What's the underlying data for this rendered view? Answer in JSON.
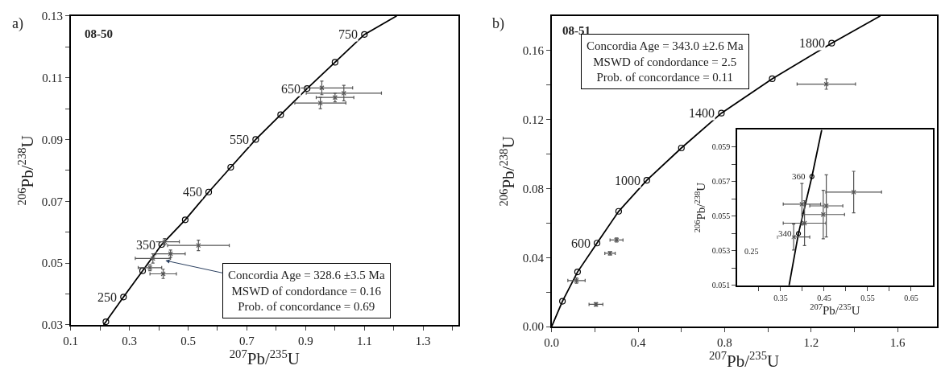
{
  "chart_data": [
    {
      "type": "scatter",
      "xlabel": "$^{207}$Pb/$^{235}$U",
      "ylabel": "$^{206}$Pb/$^{238}$U",
      "xlim": [
        0.1,
        1.42
      ],
      "ylim": [
        0.03,
        0.13
      ],
      "xticks": [
        0.1,
        {
          "value": 0.2,
          "label": null
        },
        0.3,
        {
          "value": 0.4,
          "label": null
        },
        0.5,
        {
          "value": 0.6,
          "label": null
        },
        0.7,
        {
          "value": 0.8,
          "label": null
        },
        0.9,
        {
          "value": 1.0,
          "label": null
        },
        1.1,
        {
          "value": 1.2,
          "label": null
        },
        1.3,
        {
          "value": 1.4,
          "label": null
        }
      ],
      "yticks": [
        0.03,
        {
          "value": 0.04,
          "label": null
        },
        0.05,
        {
          "value": 0.06,
          "label": null
        },
        0.07,
        {
          "value": 0.08,
          "label": null
        },
        0.09,
        {
          "value": 0.1,
          "label": null
        },
        0.11,
        {
          "value": 0.12,
          "label": null
        },
        0.13
      ],
      "series": [
        {
          "type": "line",
          "color": "#000000",
          "marker": "none",
          "line_style": "solid",
          "x": [
            0.212,
            0.22,
            0.28,
            0.345,
            0.41,
            0.49,
            0.57,
            0.645,
            0.73,
            0.815,
            0.905,
            1.0,
            1.1,
            1.21
          ],
          "values": [
            0.03,
            0.031,
            0.039,
            0.0475,
            0.056,
            0.064,
            0.073,
            0.081,
            0.09,
            0.098,
            0.1065,
            0.115,
            0.124,
            0.13
          ]
        },
        {
          "color": "#000000",
          "marker": "circle",
          "x": [
            0.22,
            0.28,
            0.345,
            0.41,
            0.49,
            0.57,
            0.645,
            0.73,
            0.815,
            0.905,
            1.0,
            1.1
          ],
          "values": [
            0.031,
            0.039,
            0.0475,
            0.056,
            0.064,
            0.073,
            0.081,
            0.09,
            0.098,
            0.1065,
            0.115,
            0.124
          ]
        },
        {
          "color": "#555555",
          "marker": "cross",
          "x": [
            0.42,
            0.535,
            0.38,
            0.44,
            0.37,
            0.415,
            0.955,
            1.03,
            1.0,
            0.95
          ],
          "values": [
            0.0569,
            0.0557,
            0.0515,
            0.053,
            0.0485,
            0.0465,
            0.1067,
            0.105,
            0.1036,
            0.1018
          ],
          "xerrors": [
            0.05,
            0.105,
            0.06,
            0.05,
            0.04,
            0.045,
            0.105,
            0.128,
            0.064,
            0.087
          ],
          "errors": [
            0.001,
            0.0017,
            0.0015,
            0.0012,
            0.001,
            0.0015,
            0.0022,
            0.0025,
            0.0014,
            0.0018
          ]
        }
      ],
      "annotations": [
        "a)",
        "08-50",
        {
          "text": "250",
          "x": 0.28,
          "y": 0.039
        },
        {
          "text": "350",
          "x": 0.41,
          "y": 0.056
        },
        {
          "text": "450",
          "x": 0.57,
          "y": 0.073
        },
        {
          "text": "550",
          "x": 0.73,
          "y": 0.09
        },
        {
          "text": "650",
          "x": 0.905,
          "y": 0.1065
        },
        {
          "text": "750",
          "x": 1.1,
          "y": 0.124
        },
        {
          "text": "Concordia Age = 328.6 ±3.5 Ma\nMSWD of condordance = 0.16\nProb. of concordance = 0.69",
          "x": 0.423,
          "y": 0.0508
        }
      ]
    },
    {
      "type": "scatter",
      "xlabel": "$^{207}$Pb/$^{235}$U",
      "ylabel": "$^{206}$Pb/$^{238}$U",
      "xlim": [
        0.0,
        1.78
      ],
      "ylim": [
        0.0,
        0.18
      ],
      "xticks": [
        {
          "value": 0.0,
          "label": "0.0"
        },
        {
          "value": 0.2,
          "label": null
        },
        0.4,
        {
          "value": 0.6,
          "label": null
        },
        0.8,
        {
          "value": 1.0,
          "label": null
        },
        1.2,
        {
          "value": 1.4,
          "label": null
        },
        1.6
      ],
      "yticks": [
        {
          "value": 0.0,
          "label": "0.00"
        },
        {
          "value": 0.02,
          "label": null
        },
        0.04,
        {
          "value": 0.06,
          "label": null
        },
        0.08,
        {
          "value": 0.1,
          "label": null
        },
        0.12,
        {
          "value": 0.14,
          "label": null
        },
        0.16
      ],
      "series": [
        {
          "type": "line",
          "color": "#000000",
          "marker": "none",
          "line_style": "solid",
          "x": [
            0.0,
            0.05,
            0.12,
            0.21,
            0.31,
            0.44,
            0.6,
            0.785,
            1.02,
            1.295,
            1.52
          ],
          "values": [
            0.0,
            0.0147,
            0.0317,
            0.0484,
            0.0668,
            0.0848,
            0.1035,
            0.1237,
            0.1436,
            0.1642,
            0.18
          ]
        },
        {
          "color": "#000000",
          "marker": "circle",
          "x": [
            0.05,
            0.12,
            0.21,
            0.31,
            0.44,
            0.6,
            0.785,
            1.02,
            1.295
          ],
          "values": [
            0.0147,
            0.0317,
            0.0484,
            0.0668,
            0.0848,
            0.1035,
            0.1237,
            0.1436,
            0.1642
          ]
        },
        {
          "color": "#555555",
          "marker": "cross",
          "x": [
            1.27,
            0.3,
            0.27,
            0.115,
            0.205
          ],
          "values": [
            0.1405,
            0.0502,
            0.0425,
            0.0267,
            0.0129
          ],
          "xerrors": [
            0.135,
            0.03,
            0.024,
            0.04,
            0.032
          ],
          "errors": [
            0.003,
            0.0012,
            0.001,
            0.0015,
            0.001
          ]
        }
      ],
      "annotations": [
        "b)",
        "08-51",
        "Concordia Age = 343.0 ±2.6 Ma\nMSWD of condordance = 2.5\nProb. of concordance = 0.11",
        {
          "text": "600",
          "x": 0.21,
          "y": 0.0484
        },
        {
          "text": "1000",
          "x": 0.44,
          "y": 0.0848
        },
        {
          "text": "1400",
          "x": 0.785,
          "y": 0.1237
        },
        {
          "text": "1800",
          "x": 1.295,
          "y": 0.1642
        }
      ]
    },
    {
      "type": "scatter",
      "xlabel": "$^{207}$Pb/$^{235}$U",
      "ylabel": "$^{206}$Pb/$^{238}$U",
      "xlim": [
        0.25,
        0.7
      ],
      "ylim": [
        0.051,
        0.06
      ],
      "xticks": [
        {
          "value": 0.3,
          "label": null
        },
        0.35,
        {
          "value": 0.4,
          "label": null
        },
        0.45,
        {
          "value": 0.5,
          "label": null
        },
        0.55,
        {
          "value": 0.6,
          "label": null
        },
        0.65
      ],
      "yticks": [
        0.051,
        {
          "value": 0.052,
          "label": null
        },
        0.053,
        {
          "value": 0.054,
          "label": null
        },
        0.055,
        {
          "value": 0.056,
          "label": null
        },
        0.057,
        {
          "value": 0.058,
          "label": null
        },
        0.059
      ],
      "series": [
        {
          "type": "line",
          "color": "#000000",
          "marker": "none",
          "line_style": "solid",
          "x": [
            0.3695,
            0.391,
            0.422,
            0.4445
          ],
          "values": [
            0.051,
            0.054,
            0.0573,
            0.06
          ]
        },
        {
          "color": "#000000",
          "marker": "circle",
          "x": [
            0.391,
            0.422
          ],
          "values": [
            0.054,
            0.0573
          ]
        },
        {
          "color": "#555555",
          "marker": "cross",
          "x": [
            0.399,
            0.455,
            0.518,
            0.38,
            0.448,
            0.405
          ],
          "values": [
            0.0557,
            0.0556,
            0.0564,
            0.0538,
            0.0551,
            0.0546
          ],
          "xerrors": [
            0.043,
            0.038,
            0.064,
            0.037,
            0.049,
            0.049
          ],
          "errors": [
            0.0012,
            0.0018,
            0.0012,
            0.00075,
            0.0014,
            0.0013
          ]
        }
      ],
      "annotations": [
        "0.25",
        {
          "text": "340",
          "x": 0.391,
          "y": 0.054
        },
        {
          "text": "360",
          "x": 0.422,
          "y": 0.0573
        }
      ]
    }
  ]
}
